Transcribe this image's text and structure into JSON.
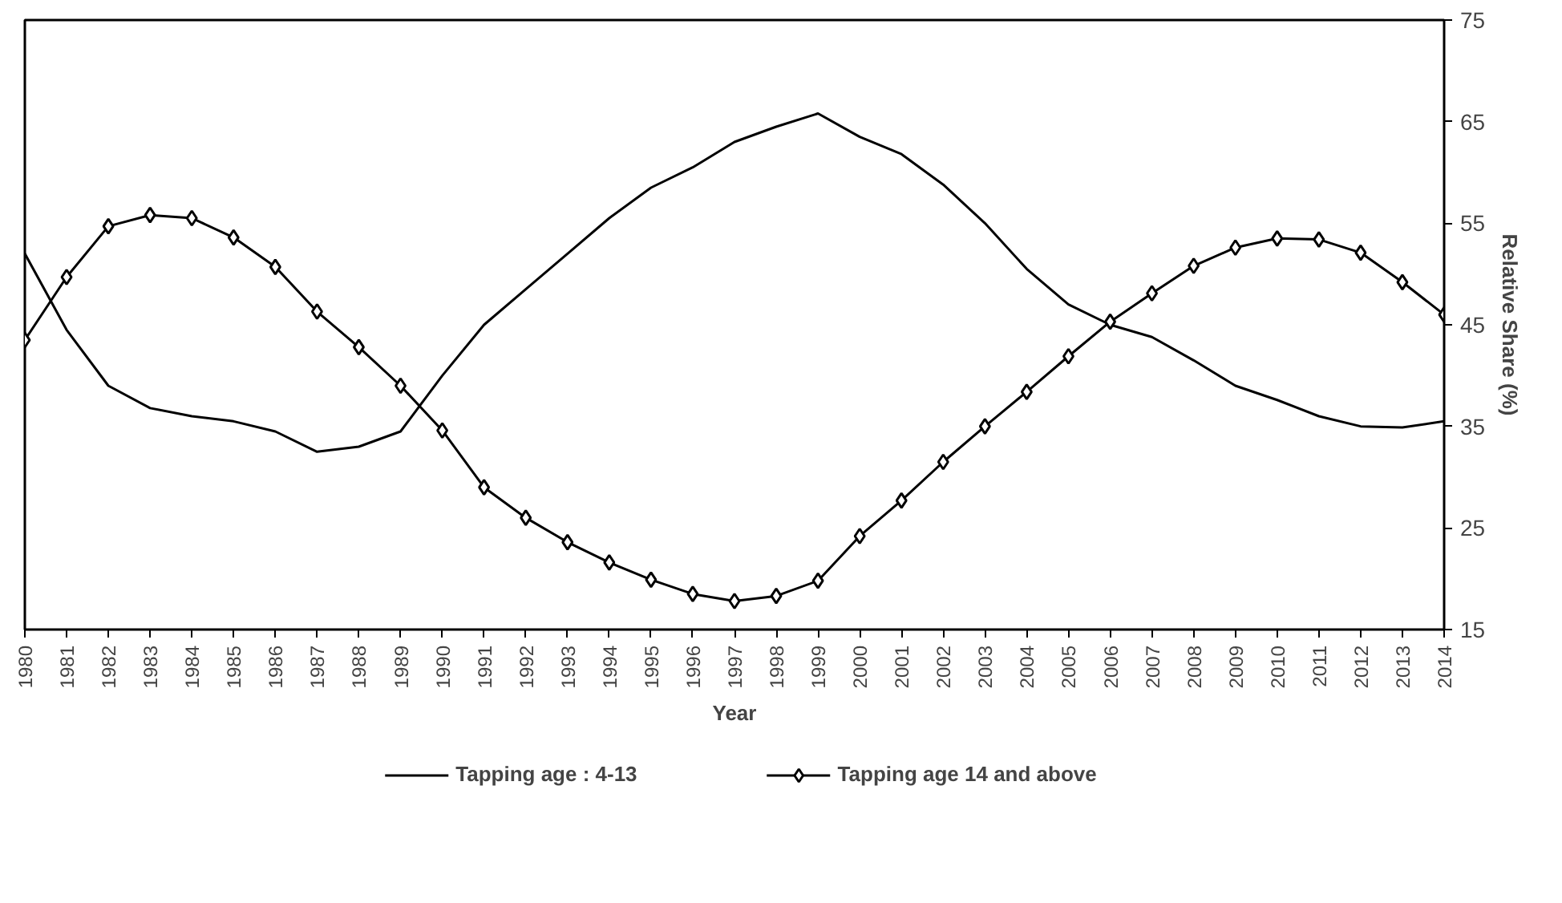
{
  "chart_data": {
    "type": "line",
    "xlabel": "Year",
    "ylabel": "Relative Share (%)",
    "categories": [
      "1980",
      "1981",
      "1982",
      "1983",
      "1984",
      "1985",
      "1986",
      "1987",
      "1988",
      "1989",
      "1990",
      "1991",
      "1992",
      "1993",
      "1994",
      "1995",
      "1996",
      "1997",
      "1998",
      "1999",
      "2000",
      "2001",
      "2002",
      "2003",
      "2004",
      "2005",
      "2006",
      "2007",
      "2008",
      "2009",
      "2010",
      "2011",
      "2012",
      "2013",
      "2014"
    ],
    "ylim": [
      15,
      75
    ],
    "yticks": [
      15,
      25,
      35,
      45,
      55,
      65,
      75
    ],
    "grid": false,
    "legend": "bottom",
    "series": [
      {
        "name": "Tapping age : 4-13",
        "color": "#000000",
        "marker": "none",
        "values": [
          52,
          44.5,
          39,
          36.8,
          36,
          35.5,
          34.5,
          32.5,
          33,
          34.5,
          40,
          45,
          48.5,
          52,
          55.5,
          58.5,
          60.5,
          63,
          64.5,
          65.8,
          63.5,
          61.8,
          58.8,
          55,
          50.5,
          47,
          45,
          43.8,
          41.5,
          39,
          37.6,
          36,
          35,
          34.9,
          35.5
        ]
      },
      {
        "name": "Tapping age 14 and above",
        "color": "#000000",
        "marker": "diamond",
        "values": [
          43.5,
          49.7,
          54.7,
          55.8,
          55.5,
          53.6,
          50.7,
          46.3,
          42.8,
          39,
          34.6,
          29,
          26,
          23.6,
          21.6,
          19.9,
          18.5,
          17.8,
          18.3,
          19.8,
          24.2,
          27.7,
          31.5,
          35,
          38.4,
          41.9,
          45.3,
          48.1,
          50.8,
          52.6,
          53.5,
          53.4,
          52.1,
          49.2,
          46.0
        ]
      }
    ]
  }
}
